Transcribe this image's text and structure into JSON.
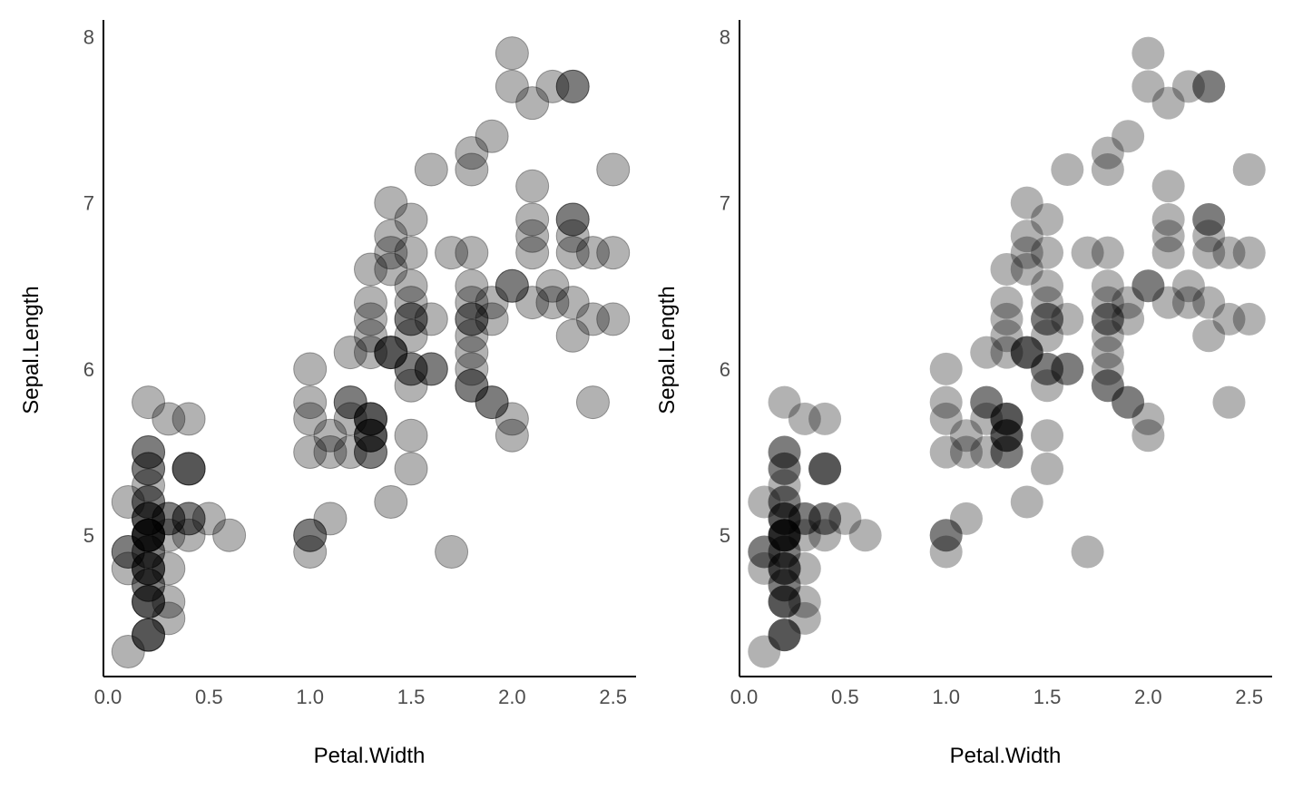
{
  "chart_data": [
    {
      "type": "scatter",
      "xlabel": "Petal.Width",
      "ylabel": "Sepal.Length",
      "xlim": [
        0.0,
        2.6
      ],
      "ylim": [
        4.15,
        8.1
      ],
      "x_ticks": [
        "0.0",
        "0.5",
        "1.0",
        "1.5",
        "2.0",
        "2.5"
      ],
      "y_ticks": [
        "5",
        "6",
        "7",
        "8"
      ],
      "grid": false,
      "marker": {
        "color": "#000000",
        "opacity": 0.3,
        "stroke": "#000000"
      },
      "points": [
        [
          0.2,
          5.1
        ],
        [
          0.2,
          4.9
        ],
        [
          0.2,
          4.7
        ],
        [
          0.2,
          4.6
        ],
        [
          0.2,
          5.0
        ],
        [
          0.4,
          5.4
        ],
        [
          0.3,
          4.6
        ],
        [
          0.2,
          5.0
        ],
        [
          0.2,
          4.4
        ],
        [
          0.1,
          4.9
        ],
        [
          0.2,
          5.4
        ],
        [
          0.2,
          4.8
        ],
        [
          0.1,
          4.8
        ],
        [
          0.1,
          4.3
        ],
        [
          0.2,
          5.8
        ],
        [
          0.4,
          5.7
        ],
        [
          0.4,
          5.4
        ],
        [
          0.3,
          5.1
        ],
        [
          0.3,
          5.7
        ],
        [
          0.3,
          5.1
        ],
        [
          0.2,
          5.4
        ],
        [
          0.4,
          5.1
        ],
        [
          0.2,
          4.6
        ],
        [
          0.5,
          5.1
        ],
        [
          0.2,
          4.8
        ],
        [
          0.2,
          5.0
        ],
        [
          0.4,
          5.0
        ],
        [
          0.2,
          5.2
        ],
        [
          0.2,
          5.2
        ],
        [
          0.2,
          4.7
        ],
        [
          0.2,
          4.8
        ],
        [
          0.4,
          5.4
        ],
        [
          0.1,
          5.2
        ],
        [
          0.2,
          5.5
        ],
        [
          0.2,
          4.9
        ],
        [
          0.2,
          5.0
        ],
        [
          0.2,
          5.5
        ],
        [
          0.1,
          4.9
        ],
        [
          0.2,
          4.4
        ],
        [
          0.2,
          5.1
        ],
        [
          0.3,
          5.0
        ],
        [
          0.3,
          4.5
        ],
        [
          0.2,
          4.4
        ],
        [
          0.6,
          5.0
        ],
        [
          0.4,
          5.1
        ],
        [
          0.3,
          4.8
        ],
        [
          0.2,
          5.1
        ],
        [
          0.2,
          4.6
        ],
        [
          0.2,
          5.3
        ],
        [
          0.2,
          5.0
        ],
        [
          1.4,
          7.0
        ],
        [
          1.5,
          6.4
        ],
        [
          1.5,
          6.9
        ],
        [
          1.3,
          5.5
        ],
        [
          1.5,
          6.5
        ],
        [
          1.3,
          5.7
        ],
        [
          1.6,
          6.3
        ],
        [
          1.0,
          4.9
        ],
        [
          1.3,
          6.6
        ],
        [
          1.4,
          5.2
        ],
        [
          1.0,
          5.0
        ],
        [
          1.5,
          5.9
        ],
        [
          1.0,
          6.0
        ],
        [
          1.4,
          6.1
        ],
        [
          1.3,
          5.6
        ],
        [
          1.4,
          6.7
        ],
        [
          1.5,
          5.6
        ],
        [
          1.0,
          5.8
        ],
        [
          1.5,
          6.2
        ],
        [
          1.1,
          5.6
        ],
        [
          1.8,
          5.9
        ],
        [
          1.3,
          6.1
        ],
        [
          1.5,
          6.3
        ],
        [
          1.2,
          6.1
        ],
        [
          1.3,
          6.4
        ],
        [
          1.4,
          6.6
        ],
        [
          1.4,
          6.8
        ],
        [
          1.7,
          6.7
        ],
        [
          1.5,
          6.0
        ],
        [
          1.0,
          5.7
        ],
        [
          1.1,
          5.5
        ],
        [
          1.0,
          5.5
        ],
        [
          1.2,
          5.8
        ],
        [
          1.6,
          6.0
        ],
        [
          1.5,
          5.4
        ],
        [
          1.6,
          6.0
        ],
        [
          1.5,
          6.7
        ],
        [
          1.3,
          6.3
        ],
        [
          1.3,
          5.6
        ],
        [
          1.3,
          5.5
        ],
        [
          1.2,
          5.5
        ],
        [
          1.4,
          6.1
        ],
        [
          1.2,
          5.8
        ],
        [
          1.0,
          5.0
        ],
        [
          1.3,
          5.6
        ],
        [
          1.2,
          5.7
        ],
        [
          1.3,
          5.7
        ],
        [
          1.3,
          6.2
        ],
        [
          1.1,
          5.1
        ],
        [
          1.3,
          5.7
        ],
        [
          2.5,
          6.3
        ],
        [
          1.9,
          5.8
        ],
        [
          2.1,
          7.1
        ],
        [
          1.8,
          6.3
        ],
        [
          2.2,
          6.5
        ],
        [
          2.1,
          7.6
        ],
        [
          1.7,
          4.9
        ],
        [
          1.8,
          7.3
        ],
        [
          1.8,
          6.7
        ],
        [
          2.5,
          7.2
        ],
        [
          2.0,
          6.5
        ],
        [
          1.9,
          6.4
        ],
        [
          2.1,
          6.8
        ],
        [
          2.0,
          5.7
        ],
        [
          2.4,
          5.8
        ],
        [
          2.3,
          6.4
        ],
        [
          1.8,
          6.5
        ],
        [
          2.2,
          7.7
        ],
        [
          2.3,
          7.7
        ],
        [
          1.5,
          6.0
        ],
        [
          2.3,
          6.9
        ],
        [
          2.0,
          5.6
        ],
        [
          2.0,
          7.7
        ],
        [
          1.8,
          6.3
        ],
        [
          2.1,
          6.7
        ],
        [
          1.8,
          7.2
        ],
        [
          1.8,
          6.2
        ],
        [
          1.8,
          6.1
        ],
        [
          2.1,
          6.4
        ],
        [
          1.6,
          7.2
        ],
        [
          1.9,
          7.4
        ],
        [
          2.0,
          7.9
        ],
        [
          2.2,
          6.4
        ],
        [
          1.5,
          6.3
        ],
        [
          1.4,
          6.1
        ],
        [
          2.3,
          7.7
        ],
        [
          2.4,
          6.3
        ],
        [
          1.8,
          6.4
        ],
        [
          1.8,
          6.0
        ],
        [
          2.1,
          6.9
        ],
        [
          2.4,
          6.7
        ],
        [
          2.3,
          6.9
        ],
        [
          1.9,
          5.8
        ],
        [
          2.3,
          6.8
        ],
        [
          2.5,
          6.7
        ],
        [
          2.3,
          6.7
        ],
        [
          1.9,
          6.3
        ],
        [
          2.0,
          6.5
        ],
        [
          2.3,
          6.2
        ],
        [
          1.8,
          5.9
        ]
      ]
    },
    {
      "type": "scatter",
      "xlabel": "Petal.Width",
      "ylabel": "Sepal.Length",
      "xlim": [
        0.0,
        2.6
      ],
      "ylim": [
        4.15,
        8.1
      ],
      "x_ticks": [
        "0.0",
        "0.5",
        "1.0",
        "1.5",
        "2.0",
        "2.5"
      ],
      "y_ticks": [
        "5",
        "6",
        "7",
        "8"
      ],
      "grid": false,
      "marker": {
        "color": "#000000",
        "opacity": 0.3,
        "stroke": "none"
      },
      "points": [
        [
          0.2,
          5.1
        ],
        [
          0.2,
          4.9
        ],
        [
          0.2,
          4.7
        ],
        [
          0.2,
          4.6
        ],
        [
          0.2,
          5.0
        ],
        [
          0.4,
          5.4
        ],
        [
          0.3,
          4.6
        ],
        [
          0.2,
          5.0
        ],
        [
          0.2,
          4.4
        ],
        [
          0.1,
          4.9
        ],
        [
          0.2,
          5.4
        ],
        [
          0.2,
          4.8
        ],
        [
          0.1,
          4.8
        ],
        [
          0.1,
          4.3
        ],
        [
          0.2,
          5.8
        ],
        [
          0.4,
          5.7
        ],
        [
          0.4,
          5.4
        ],
        [
          0.3,
          5.1
        ],
        [
          0.3,
          5.7
        ],
        [
          0.3,
          5.1
        ],
        [
          0.2,
          5.4
        ],
        [
          0.4,
          5.1
        ],
        [
          0.2,
          4.6
        ],
        [
          0.5,
          5.1
        ],
        [
          0.2,
          4.8
        ],
        [
          0.2,
          5.0
        ],
        [
          0.4,
          5.0
        ],
        [
          0.2,
          5.2
        ],
        [
          0.2,
          5.2
        ],
        [
          0.2,
          4.7
        ],
        [
          0.2,
          4.8
        ],
        [
          0.4,
          5.4
        ],
        [
          0.1,
          5.2
        ],
        [
          0.2,
          5.5
        ],
        [
          0.2,
          4.9
        ],
        [
          0.2,
          5.0
        ],
        [
          0.2,
          5.5
        ],
        [
          0.1,
          4.9
        ],
        [
          0.2,
          4.4
        ],
        [
          0.2,
          5.1
        ],
        [
          0.3,
          5.0
        ],
        [
          0.3,
          4.5
        ],
        [
          0.2,
          4.4
        ],
        [
          0.6,
          5.0
        ],
        [
          0.4,
          5.1
        ],
        [
          0.3,
          4.8
        ],
        [
          0.2,
          5.1
        ],
        [
          0.2,
          4.6
        ],
        [
          0.2,
          5.3
        ],
        [
          0.2,
          5.0
        ],
        [
          1.4,
          7.0
        ],
        [
          1.5,
          6.4
        ],
        [
          1.5,
          6.9
        ],
        [
          1.3,
          5.5
        ],
        [
          1.5,
          6.5
        ],
        [
          1.3,
          5.7
        ],
        [
          1.6,
          6.3
        ],
        [
          1.0,
          4.9
        ],
        [
          1.3,
          6.6
        ],
        [
          1.4,
          5.2
        ],
        [
          1.0,
          5.0
        ],
        [
          1.5,
          5.9
        ],
        [
          1.0,
          6.0
        ],
        [
          1.4,
          6.1
        ],
        [
          1.3,
          5.6
        ],
        [
          1.4,
          6.7
        ],
        [
          1.5,
          5.6
        ],
        [
          1.0,
          5.8
        ],
        [
          1.5,
          6.2
        ],
        [
          1.1,
          5.6
        ],
        [
          1.8,
          5.9
        ],
        [
          1.3,
          6.1
        ],
        [
          1.5,
          6.3
        ],
        [
          1.2,
          6.1
        ],
        [
          1.3,
          6.4
        ],
        [
          1.4,
          6.6
        ],
        [
          1.4,
          6.8
        ],
        [
          1.7,
          6.7
        ],
        [
          1.5,
          6.0
        ],
        [
          1.0,
          5.7
        ],
        [
          1.1,
          5.5
        ],
        [
          1.0,
          5.5
        ],
        [
          1.2,
          5.8
        ],
        [
          1.6,
          6.0
        ],
        [
          1.5,
          5.4
        ],
        [
          1.6,
          6.0
        ],
        [
          1.5,
          6.7
        ],
        [
          1.3,
          6.3
        ],
        [
          1.3,
          5.6
        ],
        [
          1.3,
          5.5
        ],
        [
          1.2,
          5.5
        ],
        [
          1.4,
          6.1
        ],
        [
          1.2,
          5.8
        ],
        [
          1.0,
          5.0
        ],
        [
          1.3,
          5.6
        ],
        [
          1.2,
          5.7
        ],
        [
          1.3,
          5.7
        ],
        [
          1.3,
          6.2
        ],
        [
          1.1,
          5.1
        ],
        [
          1.3,
          5.7
        ],
        [
          2.5,
          6.3
        ],
        [
          1.9,
          5.8
        ],
        [
          2.1,
          7.1
        ],
        [
          1.8,
          6.3
        ],
        [
          2.2,
          6.5
        ],
        [
          2.1,
          7.6
        ],
        [
          1.7,
          4.9
        ],
        [
          1.8,
          7.3
        ],
        [
          1.8,
          6.7
        ],
        [
          2.5,
          7.2
        ],
        [
          2.0,
          6.5
        ],
        [
          1.9,
          6.4
        ],
        [
          2.1,
          6.8
        ],
        [
          2.0,
          5.7
        ],
        [
          2.4,
          5.8
        ],
        [
          2.3,
          6.4
        ],
        [
          1.8,
          6.5
        ],
        [
          2.2,
          7.7
        ],
        [
          2.3,
          7.7
        ],
        [
          1.5,
          6.0
        ],
        [
          2.3,
          6.9
        ],
        [
          2.0,
          5.6
        ],
        [
          2.0,
          7.7
        ],
        [
          1.8,
          6.3
        ],
        [
          2.1,
          6.7
        ],
        [
          1.8,
          7.2
        ],
        [
          1.8,
          6.2
        ],
        [
          1.8,
          6.1
        ],
        [
          2.1,
          6.4
        ],
        [
          1.6,
          7.2
        ],
        [
          1.9,
          7.4
        ],
        [
          2.0,
          7.9
        ],
        [
          2.2,
          6.4
        ],
        [
          1.5,
          6.3
        ],
        [
          1.4,
          6.1
        ],
        [
          2.3,
          7.7
        ],
        [
          2.4,
          6.3
        ],
        [
          1.8,
          6.4
        ],
        [
          1.8,
          6.0
        ],
        [
          2.1,
          6.9
        ],
        [
          2.4,
          6.7
        ],
        [
          2.3,
          6.9
        ],
        [
          1.9,
          5.8
        ],
        [
          2.3,
          6.8
        ],
        [
          2.5,
          6.7
        ],
        [
          2.3,
          6.7
        ],
        [
          1.9,
          6.3
        ],
        [
          2.0,
          6.5
        ],
        [
          2.3,
          6.2
        ],
        [
          1.8,
          5.9
        ]
      ]
    }
  ]
}
